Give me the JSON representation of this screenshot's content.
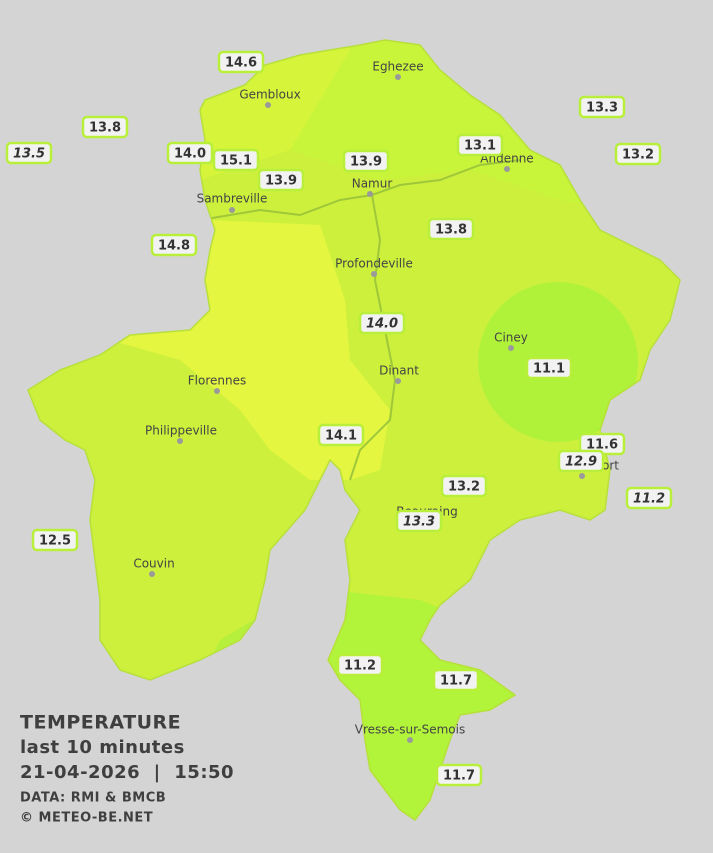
{
  "legend": {
    "title": "TEMPERATURE",
    "subtitle": "last 10 minutes",
    "datetime": "21-04-2026  |  15:50",
    "source": "DATA: RMI & BMCB",
    "copyright": "© METEO-BE.NET"
  },
  "towns": [
    {
      "name": "Eghezee"
    },
    {
      "name": "Gembloux"
    },
    {
      "name": "Andenne"
    },
    {
      "name": "Namur"
    },
    {
      "name": "Sambreville"
    },
    {
      "name": "Profondeville"
    },
    {
      "name": "Ciney"
    },
    {
      "name": "Dinant"
    },
    {
      "name": "Florennes"
    },
    {
      "name": "Philippeville"
    },
    {
      "name": "Rochefort"
    },
    {
      "name": "Beauraing"
    },
    {
      "name": "Couvin"
    },
    {
      "name": "Vresse-sur-Semois"
    }
  ],
  "stations": [
    {
      "value": "14.6",
      "italic": false
    },
    {
      "value": "13.8",
      "italic": false
    },
    {
      "value": "13.5",
      "italic": true
    },
    {
      "value": "14.0",
      "italic": false
    },
    {
      "value": "15.1",
      "italic": false
    },
    {
      "value": "13.9",
      "italic": false
    },
    {
      "value": "13.1",
      "italic": false
    },
    {
      "value": "13.3",
      "italic": false
    },
    {
      "value": "13.2",
      "italic": false
    },
    {
      "value": "13.9",
      "italic": false
    },
    {
      "value": "14.8",
      "italic": false
    },
    {
      "value": "13.8",
      "italic": false
    },
    {
      "value": "14.0",
      "italic": true
    },
    {
      "value": "11.1",
      "italic": false
    },
    {
      "value": "14.1",
      "italic": false
    },
    {
      "value": "11.6",
      "italic": false
    },
    {
      "value": "12.9",
      "italic": true
    },
    {
      "value": "11.2",
      "italic": true
    },
    {
      "value": "13.2",
      "italic": false
    },
    {
      "value": "13.3",
      "italic": true
    },
    {
      "value": "12.5",
      "italic": false
    },
    {
      "value": "11.2",
      "italic": false
    },
    {
      "value": "11.7",
      "italic": false
    },
    {
      "value": "11.7",
      "italic": false
    }
  ]
}
